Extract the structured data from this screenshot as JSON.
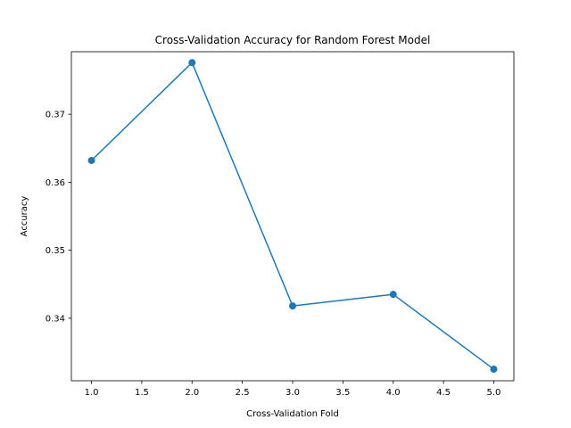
{
  "chart_data": {
    "type": "line",
    "title": "Cross-Validation Accuracy for Random Forest Model",
    "xlabel": "Cross-Validation Fold",
    "ylabel": "Accuracy",
    "xlim": [
      0.8,
      5.2
    ],
    "ylim": [
      0.3308,
      0.3792
    ],
    "x_ticks": [
      1.0,
      1.5,
      2.0,
      2.5,
      3.0,
      3.5,
      4.0,
      4.5,
      5.0
    ],
    "x_tick_labels": [
      "1.0",
      "1.5",
      "2.0",
      "2.5",
      "3.0",
      "3.5",
      "4.0",
      "4.5",
      "5.0"
    ],
    "y_ticks": [
      0.34,
      0.35,
      0.36,
      0.37
    ],
    "y_tick_labels": [
      "0.34",
      "0.35",
      "0.36",
      "0.37"
    ],
    "grid": false,
    "legend": "none",
    "series": [
      {
        "color": "#1f77b4",
        "marker": "circle",
        "x": [
          1,
          2,
          3,
          4,
          5
        ],
        "values": [
          0.3632,
          0.3776,
          0.3418,
          0.3435,
          0.3325
        ]
      }
    ]
  }
}
